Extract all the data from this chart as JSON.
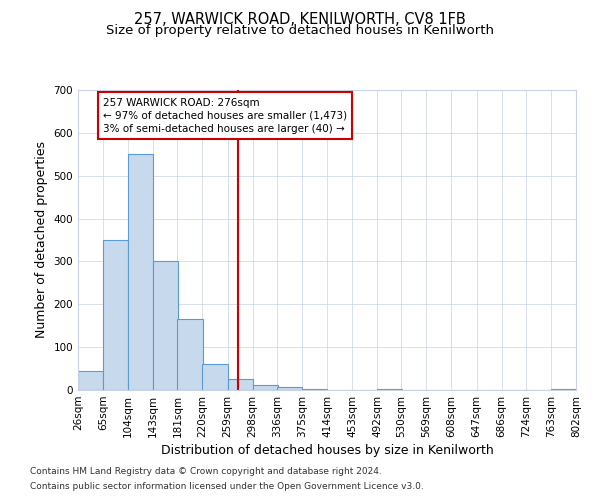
{
  "title": "257, WARWICK ROAD, KENILWORTH, CV8 1FB",
  "subtitle": "Size of property relative to detached houses in Kenilworth",
  "xlabel": "Distribution of detached houses by size in Kenilworth",
  "ylabel": "Number of detached properties",
  "bar_left_edges": [
    26,
    65,
    104,
    143,
    181,
    220,
    259,
    298,
    336,
    375,
    414,
    453,
    492,
    530,
    569,
    608,
    647,
    686,
    724,
    763
  ],
  "bar_heights": [
    45,
    350,
    550,
    300,
    165,
    60,
    25,
    12,
    7,
    2,
    0,
    0,
    3,
    0,
    0,
    0,
    0,
    0,
    0,
    3
  ],
  "bin_width": 39,
  "bar_color": "#c7d9ed",
  "bar_edge_color": "#5b9bd5",
  "vline_x": 276,
  "vline_color": "#cc0000",
  "ylim": [
    0,
    700
  ],
  "yticks": [
    0,
    100,
    200,
    300,
    400,
    500,
    600,
    700
  ],
  "xtick_labels": [
    "26sqm",
    "65sqm",
    "104sqm",
    "143sqm",
    "181sqm",
    "220sqm",
    "259sqm",
    "298sqm",
    "336sqm",
    "375sqm",
    "414sqm",
    "453sqm",
    "492sqm",
    "530sqm",
    "569sqm",
    "608sqm",
    "647sqm",
    "686sqm",
    "724sqm",
    "763sqm",
    "802sqm"
  ],
  "annotation_title": "257 WARWICK ROAD: 276sqm",
  "annotation_line1": "← 97% of detached houses are smaller (1,473)",
  "annotation_line2": "3% of semi-detached houses are larger (40) →",
  "annotation_box_color": "#ffffff",
  "annotation_box_edge": "#cc0000",
  "footer_line1": "Contains HM Land Registry data © Crown copyright and database right 2024.",
  "footer_line2": "Contains public sector information licensed under the Open Government Licence v3.0.",
  "background_color": "#ffffff",
  "grid_color": "#c8d4e3",
  "title_fontsize": 10.5,
  "subtitle_fontsize": 9.5,
  "axis_label_fontsize": 9,
  "tick_fontsize": 7.5,
  "footer_fontsize": 6.5,
  "annotation_fontsize": 7.5
}
